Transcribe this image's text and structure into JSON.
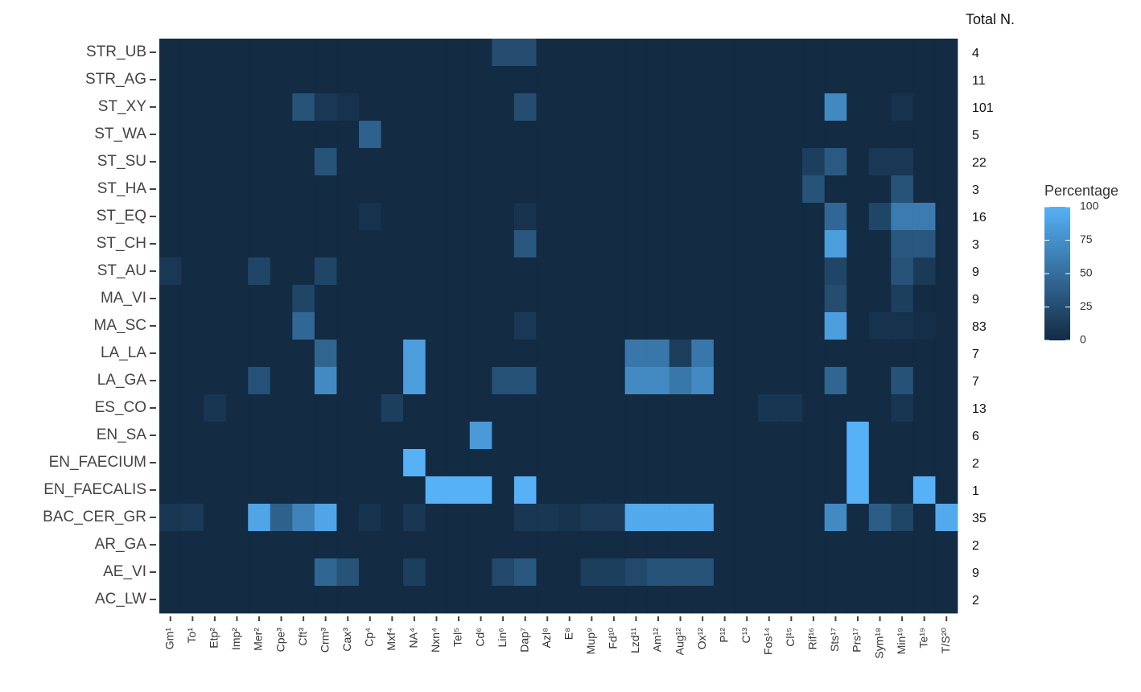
{
  "chart_data": {
    "type": "heatmap",
    "rows": [
      "STR_UB",
      "STR_AG",
      "ST_XY",
      "ST_WA",
      "ST_SU",
      "ST_HA",
      "ST_EQ",
      "ST_CH",
      "ST_AU",
      "MA_VI",
      "MA_SC",
      "LA_LA",
      "LA_GA",
      "ES_CO",
      "EN_SA",
      "EN_FAECIUM",
      "EN_FAECALIS",
      "BAC_CER_GR",
      "AR_GA",
      "AE_VI",
      "AC_LW"
    ],
    "columns": [
      "Gm¹",
      "To¹",
      "Etp²",
      "Imp²",
      "Mer²",
      "Cpe³",
      "Cft³",
      "Crm³",
      "Cax³",
      "Cp⁴",
      "Mxf⁴",
      "NA⁴",
      "Nxn⁴",
      "Tel⁵",
      "Cd⁶",
      "Lin⁶",
      "Dap⁷",
      "Azl⁸",
      "E⁸",
      "Mup⁹",
      "Fd¹⁰",
      "Lzd¹¹",
      "Am¹²",
      "Aug¹²",
      "Ox¹²",
      "P¹²",
      "C¹³",
      "Fos¹⁴",
      "Cl¹⁵",
      "Rif¹⁶",
      "Sts¹⁷",
      "Prs¹⁷",
      "Sym¹⁸",
      "Min¹⁹",
      "Te¹⁹",
      "T/S²⁰"
    ],
    "values": [
      [
        0,
        0,
        0,
        0,
        0,
        0,
        0,
        0,
        0,
        0,
        0,
        0,
        0,
        0,
        0,
        25,
        25,
        0,
        0,
        0,
        0,
        0,
        0,
        0,
        0,
        0,
        0,
        0,
        0,
        0,
        0,
        0,
        0,
        0,
        0,
        0
      ],
      [
        0,
        0,
        0,
        0,
        0,
        0,
        0,
        0,
        0,
        0,
        0,
        0,
        0,
        0,
        0,
        0,
        0,
        0,
        0,
        0,
        0,
        0,
        0,
        0,
        0,
        0,
        0,
        0,
        0,
        0,
        0,
        0,
        0,
        0,
        0,
        0
      ],
      [
        0,
        0,
        0,
        0,
        0,
        0,
        30,
        10,
        5,
        0,
        0,
        0,
        0,
        0,
        0,
        0,
        25,
        0,
        0,
        0,
        0,
        0,
        0,
        0,
        0,
        0,
        0,
        0,
        0,
        0,
        70,
        0,
        0,
        5,
        0,
        0
      ],
      [
        0,
        0,
        0,
        0,
        0,
        0,
        0,
        0,
        0,
        40,
        0,
        0,
        0,
        0,
        0,
        0,
        0,
        0,
        0,
        0,
        0,
        0,
        0,
        0,
        0,
        0,
        0,
        0,
        0,
        0,
        0,
        0,
        0,
        0,
        0,
        0
      ],
      [
        0,
        0,
        0,
        0,
        0,
        0,
        0,
        30,
        0,
        0,
        0,
        0,
        0,
        0,
        0,
        0,
        0,
        0,
        0,
        0,
        0,
        0,
        0,
        0,
        0,
        0,
        0,
        0,
        0,
        15,
        35,
        0,
        10,
        10,
        0,
        0
      ],
      [
        0,
        0,
        0,
        0,
        0,
        0,
        0,
        0,
        0,
        0,
        0,
        0,
        0,
        0,
        0,
        0,
        0,
        0,
        0,
        0,
        0,
        0,
        0,
        0,
        0,
        0,
        0,
        0,
        0,
        30,
        0,
        0,
        0,
        30,
        0,
        0
      ],
      [
        0,
        0,
        0,
        0,
        0,
        0,
        0,
        0,
        0,
        5,
        0,
        0,
        0,
        0,
        0,
        0,
        6,
        0,
        0,
        0,
        0,
        0,
        0,
        0,
        0,
        0,
        0,
        0,
        0,
        0,
        45,
        0,
        20,
        60,
        60,
        0
      ],
      [
        0,
        0,
        0,
        0,
        0,
        0,
        0,
        0,
        0,
        0,
        0,
        0,
        0,
        0,
        0,
        0,
        33,
        0,
        0,
        0,
        0,
        0,
        0,
        0,
        0,
        0,
        0,
        0,
        0,
        0,
        85,
        0,
        0,
        33,
        33,
        0
      ],
      [
        10,
        0,
        0,
        0,
        20,
        0,
        0,
        20,
        0,
        0,
        0,
        0,
        0,
        0,
        0,
        0,
        0,
        0,
        0,
        0,
        0,
        0,
        0,
        0,
        0,
        0,
        0,
        0,
        0,
        0,
        20,
        0,
        0,
        30,
        11,
        0
      ],
      [
        0,
        0,
        0,
        0,
        0,
        0,
        20,
        0,
        0,
        0,
        0,
        0,
        0,
        0,
        0,
        0,
        0,
        0,
        0,
        0,
        0,
        0,
        0,
        0,
        0,
        0,
        0,
        0,
        0,
        0,
        25,
        0,
        0,
        15,
        0,
        0
      ],
      [
        0,
        0,
        0,
        0,
        0,
        0,
        45,
        0,
        0,
        0,
        0,
        0,
        0,
        0,
        0,
        0,
        10,
        0,
        0,
        0,
        0,
        0,
        0,
        0,
        0,
        0,
        0,
        0,
        0,
        0,
        85,
        0,
        5,
        5,
        3,
        0
      ],
      [
        0,
        0,
        0,
        0,
        0,
        0,
        0,
        43,
        0,
        0,
        0,
        86,
        0,
        0,
        0,
        0,
        0,
        0,
        0,
        0,
        0,
        57,
        57,
        14,
        57,
        0,
        0,
        0,
        0,
        0,
        0,
        0,
        0,
        0,
        0,
        0
      ],
      [
        0,
        0,
        0,
        0,
        29,
        0,
        0,
        71,
        0,
        0,
        0,
        86,
        0,
        0,
        0,
        29,
        29,
        0,
        0,
        0,
        0,
        71,
        71,
        57,
        71,
        0,
        0,
        0,
        0,
        0,
        43,
        0,
        0,
        29,
        0,
        0
      ],
      [
        0,
        0,
        8,
        0,
        0,
        0,
        0,
        0,
        0,
        0,
        15,
        0,
        0,
        0,
        0,
        0,
        0,
        0,
        0,
        0,
        0,
        0,
        0,
        0,
        0,
        0,
        0,
        8,
        8,
        0,
        0,
        0,
        0,
        8,
        0,
        0
      ],
      [
        0,
        0,
        0,
        0,
        0,
        0,
        0,
        0,
        0,
        0,
        0,
        0,
        0,
        0,
        83,
        0,
        0,
        0,
        0,
        0,
        0,
        0,
        0,
        0,
        0,
        0,
        0,
        0,
        0,
        0,
        0,
        100,
        0,
        0,
        0,
        0
      ],
      [
        0,
        0,
        0,
        0,
        0,
        0,
        0,
        0,
        0,
        0,
        0,
        100,
        0,
        0,
        0,
        0,
        0,
        0,
        0,
        0,
        0,
        0,
        0,
        0,
        0,
        0,
        0,
        0,
        0,
        0,
        0,
        100,
        0,
        0,
        0,
        0
      ],
      [
        0,
        0,
        0,
        0,
        0,
        0,
        0,
        0,
        0,
        0,
        0,
        0,
        100,
        100,
        100,
        0,
        100,
        0,
        0,
        0,
        0,
        0,
        0,
        0,
        0,
        0,
        0,
        0,
        0,
        0,
        0,
        100,
        0,
        0,
        100,
        0
      ],
      [
        9,
        11,
        0,
        0,
        91,
        40,
        66,
        91,
        0,
        6,
        0,
        9,
        0,
        0,
        0,
        0,
        9,
        9,
        6,
        11,
        11,
        94,
        94,
        94,
        94,
        0,
        0,
        0,
        0,
        0,
        71,
        0,
        37,
        20,
        0,
        94
      ],
      [
        0,
        0,
        0,
        0,
        0,
        0,
        0,
        0,
        0,
        0,
        0,
        0,
        0,
        0,
        0,
        0,
        0,
        0,
        0,
        0,
        0,
        0,
        0,
        0,
        0,
        0,
        0,
        0,
        0,
        0,
        0,
        0,
        0,
        0,
        0,
        0
      ],
      [
        0,
        0,
        0,
        0,
        0,
        0,
        0,
        44,
        30,
        0,
        0,
        15,
        0,
        0,
        0,
        22,
        33,
        0,
        0,
        15,
        15,
        22,
        30,
        30,
        30,
        0,
        0,
        0,
        0,
        0,
        0,
        0,
        0,
        0,
        0,
        0
      ],
      [
        0,
        0,
        0,
        0,
        0,
        0,
        0,
        0,
        0,
        0,
        0,
        0,
        0,
        0,
        0,
        0,
        0,
        0,
        0,
        0,
        0,
        0,
        0,
        0,
        0,
        0,
        0,
        0,
        0,
        0,
        0,
        0,
        0,
        0,
        0,
        0
      ]
    ],
    "totals_title": "Total N.",
    "totals": [
      4,
      11,
      101,
      5,
      22,
      3,
      16,
      3,
      9,
      9,
      83,
      7,
      7,
      13,
      6,
      2,
      1,
      35,
      2,
      9,
      2
    ],
    "legend_title": "Percentage",
    "clim": [
      0,
      100
    ],
    "cticks": [
      0,
      25,
      50,
      75,
      100
    ],
    "low_color": "#132b43",
    "high_color": "#56b1f7"
  }
}
